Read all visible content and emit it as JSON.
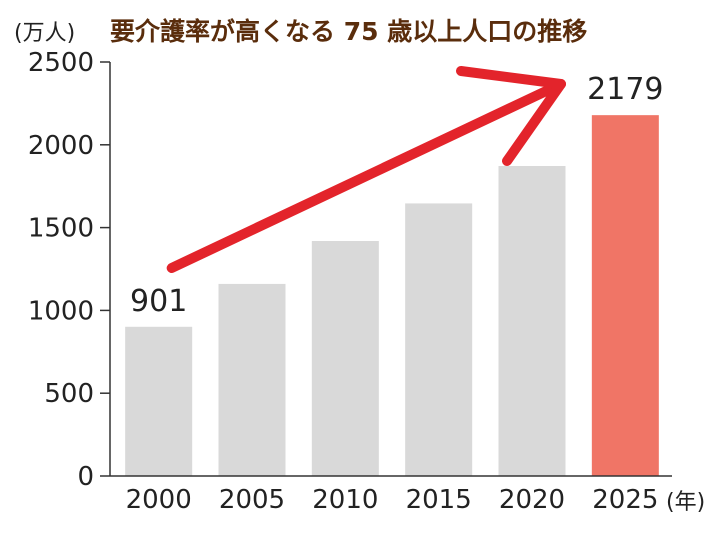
{
  "chart_data": {
    "type": "bar",
    "title": "要介護率が高くなる 75 歳以上人口の推移",
    "ylabel": "(万人)",
    "xlabel": "(年)",
    "categories": [
      "2000",
      "2005",
      "2010",
      "2015",
      "2020",
      "2025"
    ],
    "values": [
      901,
      1160,
      1419,
      1646,
      1872,
      2179
    ],
    "data_labels": [
      {
        "index": 0,
        "text": "901"
      },
      {
        "index": 5,
        "text": "2179"
      }
    ],
    "ylim": [
      0,
      2500
    ],
    "yticks": [
      0,
      500,
      1000,
      1500,
      2000,
      2500
    ],
    "grid": false,
    "legend": "none",
    "colors": {
      "bar": "#d9d9d9",
      "highlight": "#f07566",
      "arrow": "#e3242b",
      "axis": "#333333",
      "title": "#5a2d0c"
    },
    "highlight_index": 5,
    "annotation_arrow": {
      "from_category": "2000",
      "to_category": "2025",
      "meaning": "increase"
    }
  }
}
